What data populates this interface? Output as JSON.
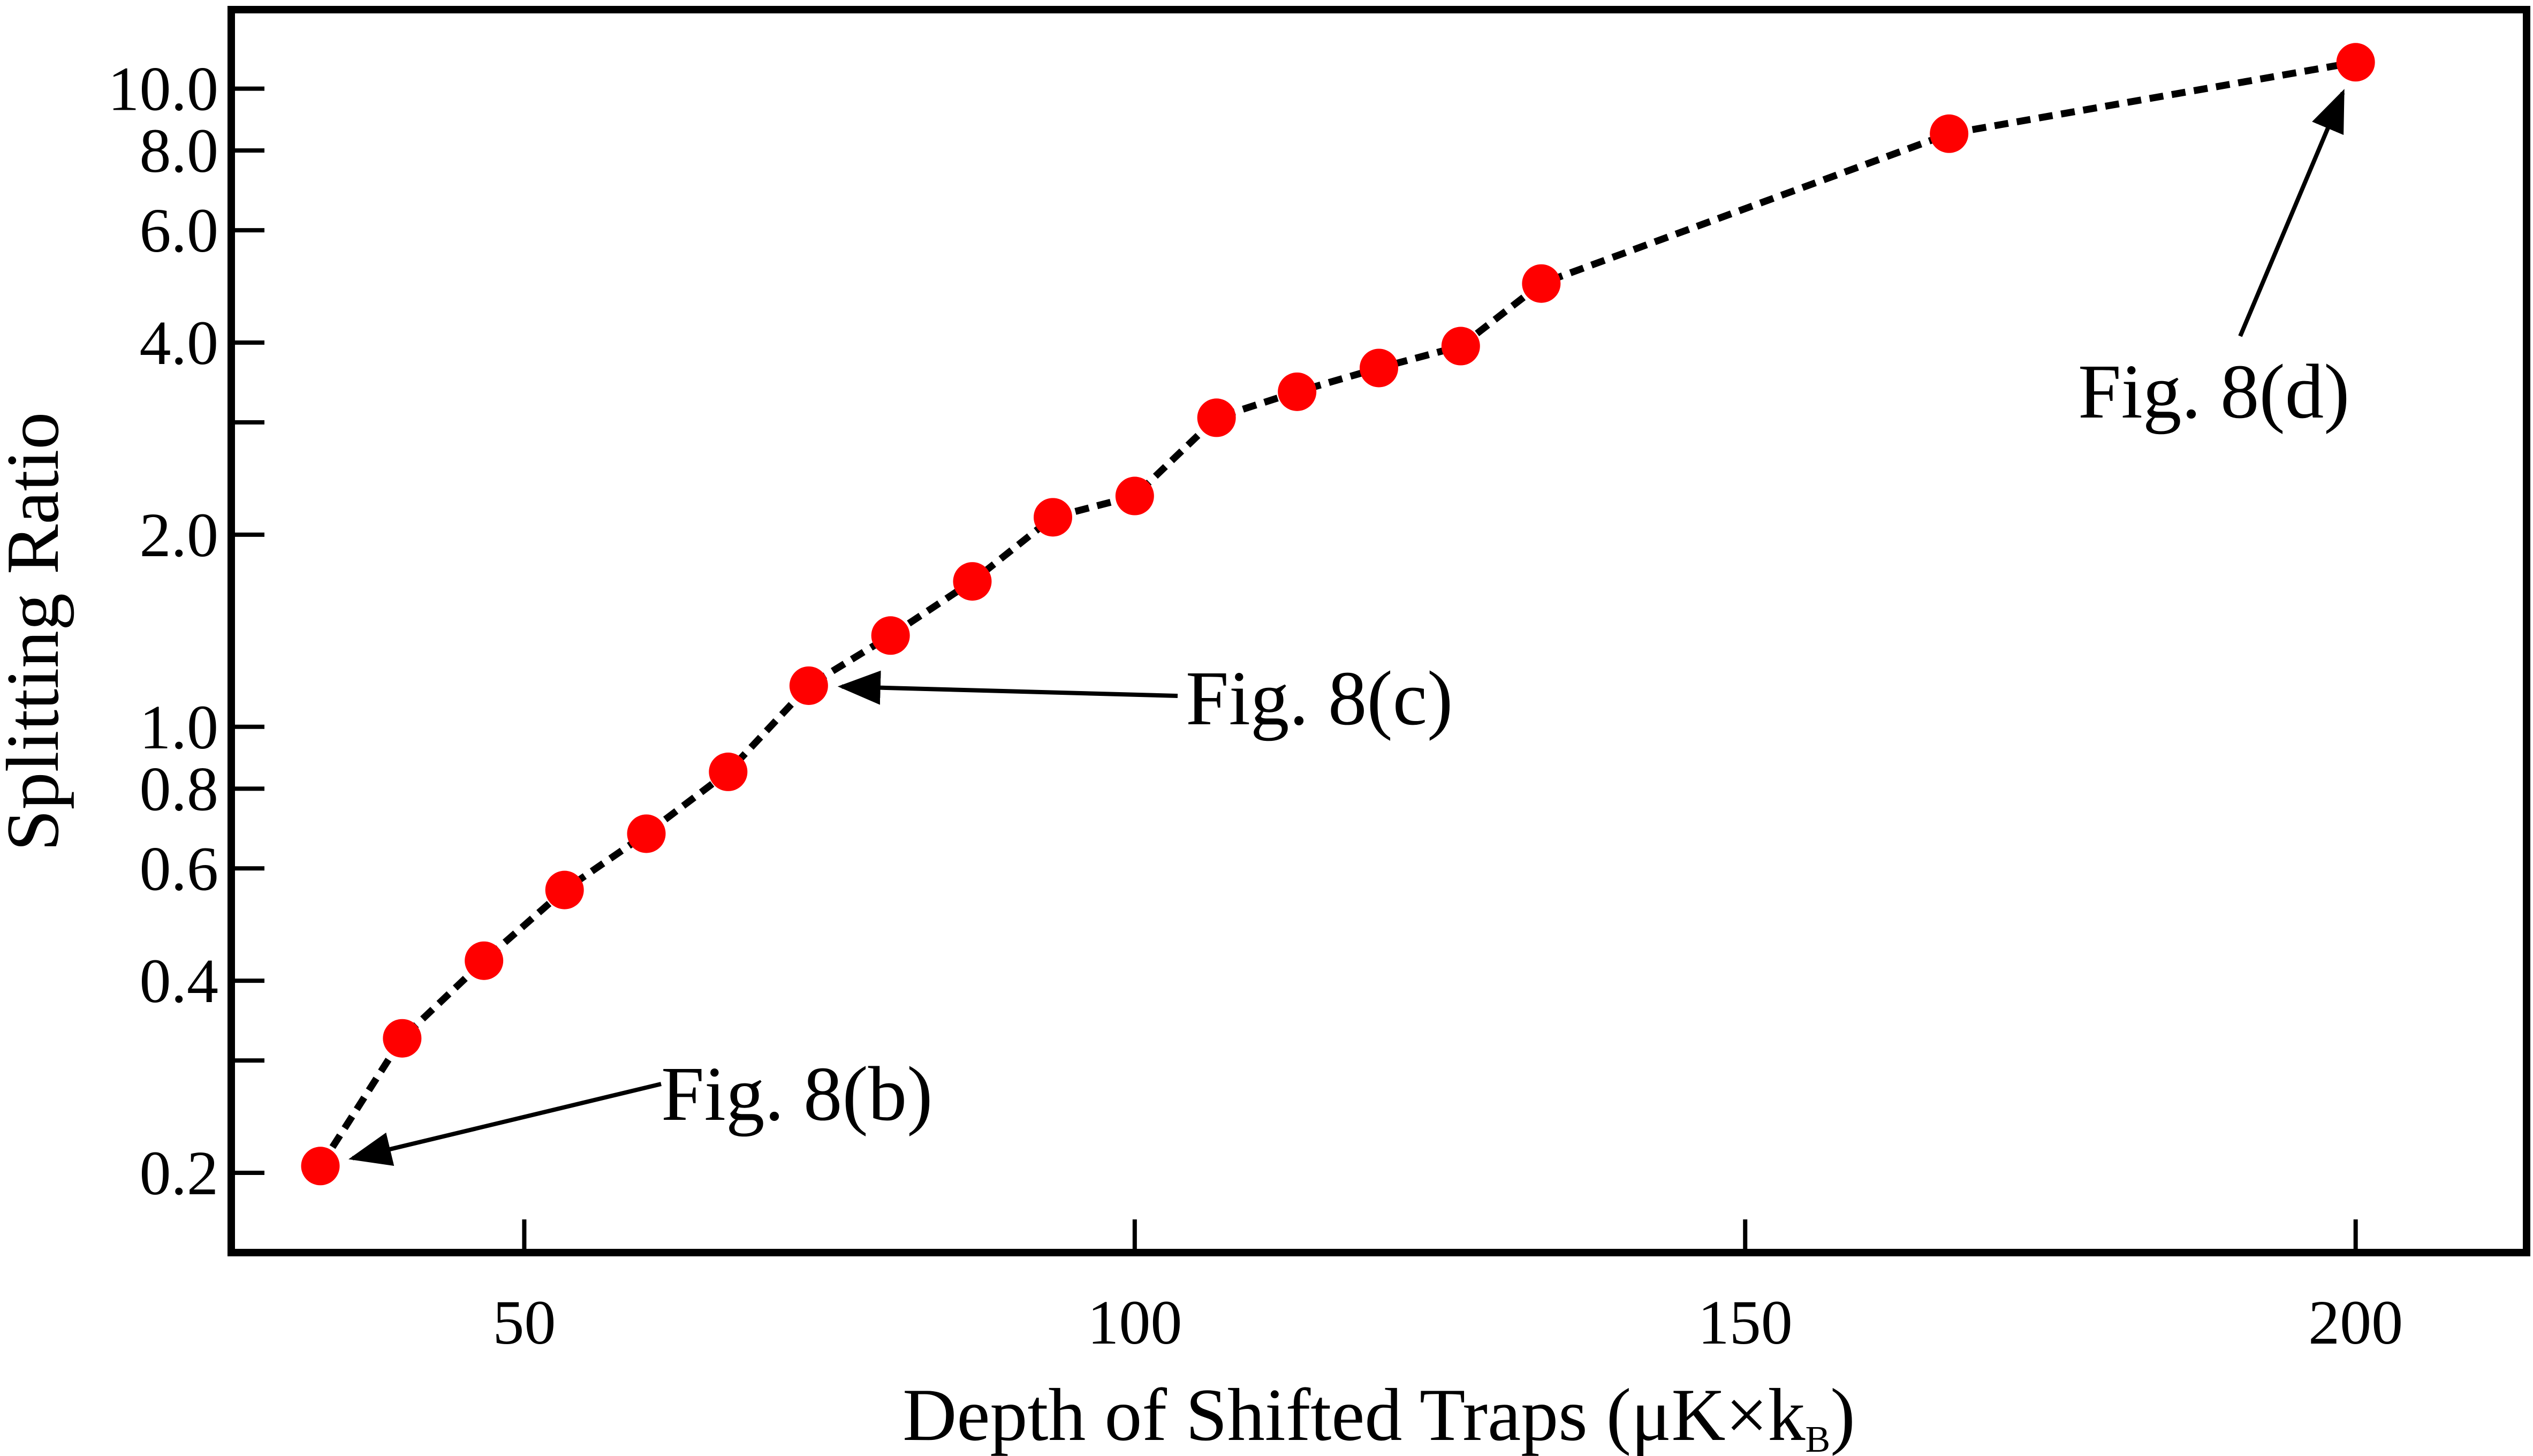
{
  "chart_data": {
    "type": "scatter",
    "title": "",
    "xlabel": "Depth of Shifted Traps (μK×k",
    "xlabel_subscript": "B",
    "xlabel_suffix": ")",
    "ylabel": "Splitting Ratio",
    "xscale": "linear",
    "yscale": "log",
    "xlim": [
      26,
      214
    ],
    "ylim": [
      0.15,
      13.3
    ],
    "x_ticks": [
      50,
      100,
      150,
      200
    ],
    "x_tick_labels": [
      "50",
      "100",
      "150",
      "200"
    ],
    "y_ticks_labeled": [
      0.2,
      0.4,
      0.6,
      0.8,
      1.0,
      2.0,
      4.0,
      6.0,
      8.0,
      10.0
    ],
    "y_tick_labels": [
      "0.2",
      "0.4",
      "0.6",
      "0.8",
      "1.0",
      "2.0",
      "4.0",
      "6.0",
      "8.0",
      "10.0"
    ],
    "y_ticks_minor": [
      0.3,
      3.0
    ],
    "grid": false,
    "series": [
      {
        "name": "Splitting ratio",
        "color": "#ff0000",
        "line_color": "#000000",
        "line_style": "dashed",
        "x": [
          33.3,
          40.0,
          46.7,
          53.3,
          60.0,
          66.7,
          73.3,
          80.0,
          86.7,
          93.3,
          100.0,
          106.7,
          113.3,
          120.0,
          126.7,
          133.3,
          166.7,
          200.0
        ],
        "y": [
          0.205,
          0.325,
          0.43,
          0.555,
          0.68,
          0.85,
          1.16,
          1.39,
          1.69,
          2.13,
          2.3,
          3.05,
          3.35,
          3.65,
          3.95,
          4.95,
          8.5,
          11.0
        ]
      }
    ],
    "annotations": [
      {
        "text": "Fig. 8(b)",
        "point_index": 0
      },
      {
        "text": "Fig. 8(c)",
        "point_index": 6
      },
      {
        "text": "Fig. 8(d)",
        "point_index": 17
      }
    ]
  }
}
